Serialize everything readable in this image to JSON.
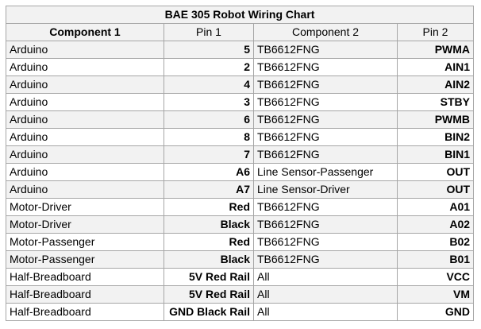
{
  "title": "BAE 305 Robot Wiring Chart",
  "headers": [
    "Component 1",
    "Pin 1",
    "Component 2",
    "Pin 2"
  ],
  "rows": [
    {
      "c1": "Arduino",
      "p1": "5",
      "c2": "TB6612FNG",
      "p2": "PWMA"
    },
    {
      "c1": "Arduino",
      "p1": "2",
      "c2": "TB6612FNG",
      "p2": "AIN1"
    },
    {
      "c1": "Arduino",
      "p1": "4",
      "c2": "TB6612FNG",
      "p2": "AIN2"
    },
    {
      "c1": "Arduino",
      "p1": "3",
      "c2": "TB6612FNG",
      "p2": "STBY"
    },
    {
      "c1": "Arduino",
      "p1": "6",
      "c2": "TB6612FNG",
      "p2": "PWMB"
    },
    {
      "c1": "Arduino",
      "p1": "8",
      "c2": "TB6612FNG",
      "p2": "BIN2"
    },
    {
      "c1": "Arduino",
      "p1": "7",
      "c2": "TB6612FNG",
      "p2": "BIN1"
    },
    {
      "c1": "Arduino",
      "p1": "A6",
      "c2": "Line Sensor-Passenger",
      "p2": "OUT"
    },
    {
      "c1": "Arduino",
      "p1": "A7",
      "c2": "Line Sensor-Driver",
      "p2": "OUT"
    },
    {
      "c1": "Motor-Driver",
      "p1": "Red",
      "c2": "TB6612FNG",
      "p2": "A01"
    },
    {
      "c1": "Motor-Driver",
      "p1": "Black",
      "c2": "TB6612FNG",
      "p2": "A02"
    },
    {
      "c1": "Motor-Passenger",
      "p1": "Red",
      "c2": "TB6612FNG",
      "p2": "B02"
    },
    {
      "c1": "Motor-Passenger",
      "p1": "Black",
      "c2": "TB6612FNG",
      "p2": "B01"
    },
    {
      "c1": "Half-Breadboard",
      "p1": "5V Red Rail",
      "c2": "All",
      "p2": "VCC"
    },
    {
      "c1": "Half-Breadboard",
      "p1": "5V Red Rail",
      "c2": "All",
      "p2": "VM"
    },
    {
      "c1": "Half-Breadboard",
      "p1": "GND Black Rail",
      "c2": "All",
      "p2": "GND"
    }
  ]
}
